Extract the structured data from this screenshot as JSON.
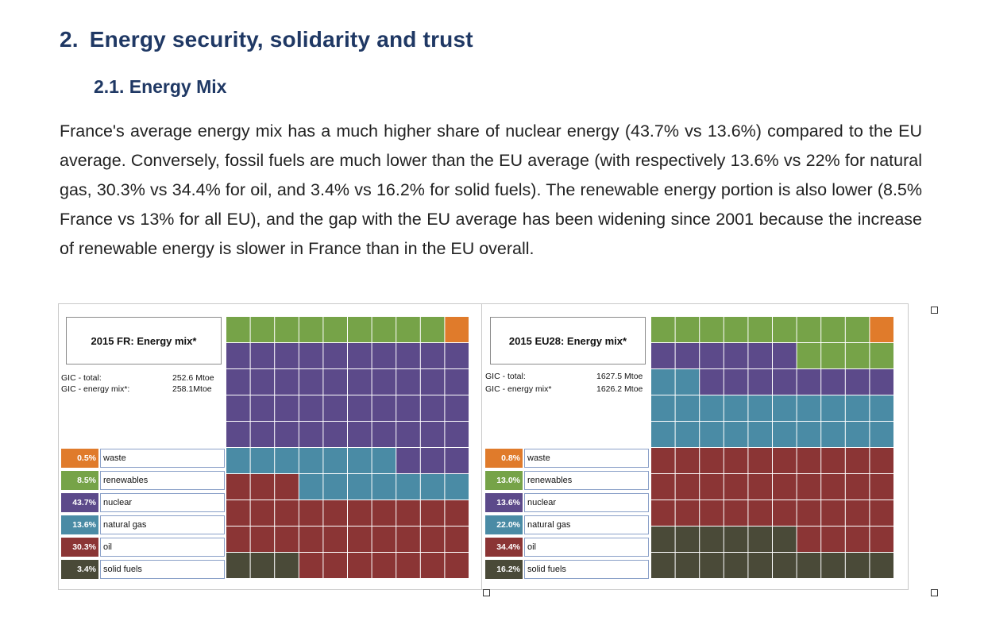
{
  "heading": {
    "number": "2.",
    "title": "Energy security, solidarity and trust"
  },
  "subheading": {
    "text": "2.1. Energy Mix"
  },
  "paragraph": "France's average energy mix has a much higher share of nuclear energy (43.7% vs 13.6%) compared to the EU average. Conversely, fossil fuels are much lower than the EU average (with respectively 13.6% vs 22% for natural gas, 30.3% vs 34.4% for oil, and 3.4% vs 16.2% for solid fuels). The renewable energy portion is also lower (8.5% France vs 13% for all EU), and the gap with the EU average has been widening since 2001 because the increase of renewable energy is slower in France than in the EU overall.",
  "colors": {
    "waste": "#e07b2b",
    "renewables": "#76a348",
    "nuclear": "#5c4a8a",
    "natural_gas": "#4a8ba5",
    "oil": "#8b3535",
    "solid_fuels": "#4a4a38"
  },
  "charts": [
    {
      "title": "2015 FR: Energy mix*",
      "gic_total_label": "GIC - total:",
      "gic_total_value": "252.6 Mtoe",
      "gic_mix_label": "GIC - energy mix*:",
      "gic_mix_value": "258.1Mtoe",
      "legend": [
        {
          "pct": "0.5%",
          "label": "waste",
          "key": "waste"
        },
        {
          "pct": "8.5%",
          "label": "renewables",
          "key": "renewables"
        },
        {
          "pct": "43.7%",
          "label": "nuclear",
          "key": "nuclear"
        },
        {
          "pct": "13.6%",
          "label": "natural gas",
          "key": "natural_gas"
        },
        {
          "pct": "30.3%",
          "label": "oil",
          "key": "oil"
        },
        {
          "pct": "3.4%",
          "label": "solid fuels",
          "key": "solid_fuels"
        }
      ],
      "waffle_counts": {
        "waste": 1,
        "renewables": 9,
        "nuclear": 43,
        "natural_gas": 14,
        "oil": 30,
        "solid_fuels": 3
      }
    },
    {
      "title": "2015 EU28: Energy mix*",
      "gic_total_label": "GIC - total:",
      "gic_total_value": "1627.5 Mtoe",
      "gic_mix_label": "GIC - energy mix*",
      "gic_mix_value": "1626.2 Mtoe",
      "legend": [
        {
          "pct": "0.8%",
          "label": "waste",
          "key": "waste"
        },
        {
          "pct": "13.0%",
          "label": "renewables",
          "key": "renewables"
        },
        {
          "pct": "13.6%",
          "label": "nuclear",
          "key": "nuclear"
        },
        {
          "pct": "22.0%",
          "label": "natural gas",
          "key": "natural_gas"
        },
        {
          "pct": "34.4%",
          "label": "oil",
          "key": "oil"
        },
        {
          "pct": "16.2%",
          "label": "solid fuels",
          "key": "solid_fuels"
        }
      ],
      "waffle_counts": {
        "waste": 1,
        "renewables": 13,
        "nuclear": 14,
        "natural_gas": 22,
        "oil": 34,
        "solid_fuels": 16
      }
    }
  ]
}
